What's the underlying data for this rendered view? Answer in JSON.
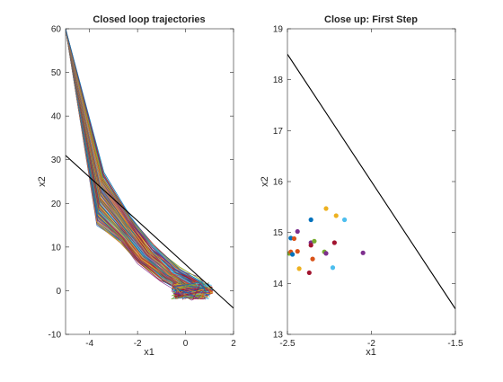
{
  "chart_data": [
    {
      "type": "line",
      "title": "Closed loop trajectories",
      "xlabel": "x1",
      "ylabel": "x2",
      "xlim": [
        -5,
        2
      ],
      "ylim": [
        -10,
        60
      ],
      "xticks": [
        -4,
        -2,
        0,
        2
      ],
      "yticks": [
        -10,
        0,
        10,
        20,
        30,
        40,
        50,
        60
      ],
      "grid": false,
      "constraint_line": {
        "color": "#000000",
        "x": [
          -5,
          2
        ],
        "y": [
          31,
          -4
        ]
      },
      "trajectories": {
        "count": 120,
        "start": [
          -5,
          60
        ],
        "envelope_lower": [
          [
            -5,
            60
          ],
          [
            -3.7,
            15
          ],
          [
            -2.7,
            11
          ],
          [
            -2.0,
            6.5
          ],
          [
            -1.0,
            2.5
          ],
          [
            0.2,
            -1.5
          ],
          [
            1.0,
            0
          ]
        ],
        "envelope_upper": [
          [
            -5,
            60
          ],
          [
            -3.4,
            27
          ],
          [
            -2.3,
            17
          ],
          [
            -1.3,
            10
          ],
          [
            -0.3,
            5
          ],
          [
            0.6,
            2.5
          ],
          [
            1.0,
            0.5
          ]
        ],
        "end_region": {
          "x": [
            -0.6,
            1.0
          ],
          "y": [
            -2,
            2
          ]
        }
      }
    },
    {
      "type": "scatter",
      "title": "Close up: First Step",
      "xlabel": "x1",
      "ylabel": "x2",
      "xlim": [
        -2.5,
        -1.5
      ],
      "ylim": [
        13,
        19
      ],
      "xticks": [
        -2.5,
        -2,
        -1.5
      ],
      "yticks": [
        13,
        14,
        15,
        16,
        17,
        18,
        19
      ],
      "grid": false,
      "constraint_line": {
        "color": "#000000",
        "x": [
          -2.5,
          -1.5
        ],
        "y": [
          18.5,
          13.5
        ]
      },
      "points": [
        {
          "x": -2.48,
          "y": 14.89,
          "color": "#0072bd"
        },
        {
          "x": -2.46,
          "y": 14.88,
          "color": "#d95319"
        },
        {
          "x": -2.44,
          "y": 15.02,
          "color": "#7e2f8e"
        },
        {
          "x": -2.36,
          "y": 15.25,
          "color": "#0072bd"
        },
        {
          "x": -2.27,
          "y": 15.47,
          "color": "#edb120"
        },
        {
          "x": -2.21,
          "y": 15.33,
          "color": "#edb120"
        },
        {
          "x": -2.16,
          "y": 15.25,
          "color": "#4dbeee"
        },
        {
          "x": -2.49,
          "y": 14.59,
          "color": "#77ac30"
        },
        {
          "x": -2.48,
          "y": 14.62,
          "color": "#d95319"
        },
        {
          "x": -2.47,
          "y": 14.57,
          "color": "#0072bd"
        },
        {
          "x": -2.44,
          "y": 14.63,
          "color": "#d95319"
        },
        {
          "x": -2.43,
          "y": 14.29,
          "color": "#edb120"
        },
        {
          "x": -2.37,
          "y": 14.21,
          "color": "#a2142f"
        },
        {
          "x": -2.36,
          "y": 14.8,
          "color": "#7e2f8e"
        },
        {
          "x": -2.36,
          "y": 14.75,
          "color": "#a2142f"
        },
        {
          "x": -2.35,
          "y": 14.48,
          "color": "#d95319"
        },
        {
          "x": -2.34,
          "y": 14.83,
          "color": "#77ac30"
        },
        {
          "x": -2.28,
          "y": 14.62,
          "color": "#77ac30"
        },
        {
          "x": -2.27,
          "y": 14.59,
          "color": "#7e2f8e"
        },
        {
          "x": -2.23,
          "y": 14.31,
          "color": "#4dbeee"
        },
        {
          "x": -2.22,
          "y": 14.8,
          "color": "#a2142f"
        },
        {
          "x": -2.05,
          "y": 14.6,
          "color": "#7e2f8e"
        }
      ]
    }
  ]
}
